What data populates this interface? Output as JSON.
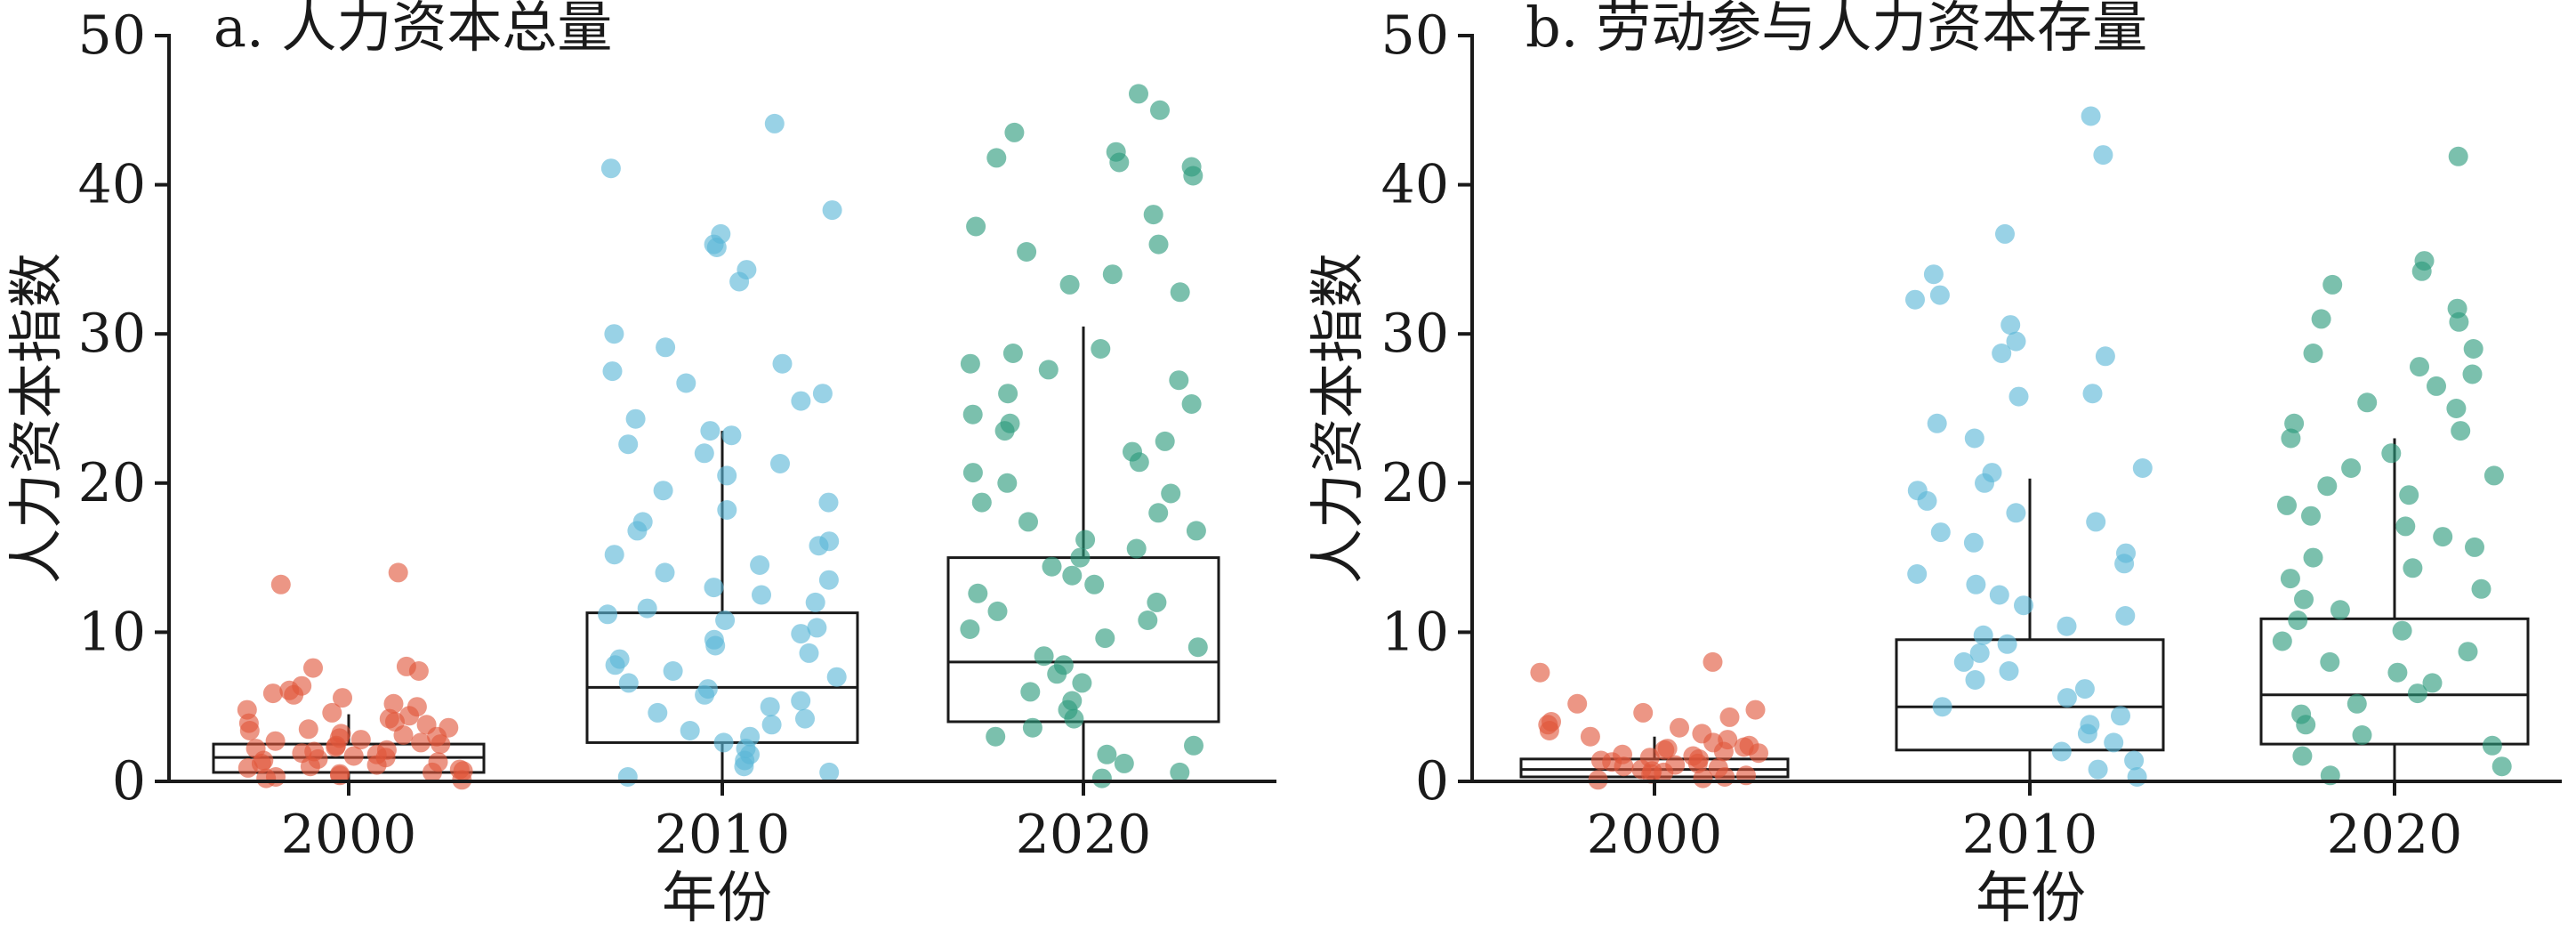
{
  "chart_data": [
    {
      "type": "scatter",
      "title": "a. 人力资本总量",
      "xlabel": "年份",
      "ylabel": "人力资本指数",
      "ylim": [
        0,
        50
      ],
      "yticks": [
        0,
        10,
        20,
        30,
        40,
        50
      ],
      "categories": [
        "2000",
        "2010",
        "2020"
      ],
      "colors": [
        "#e0553a",
        "#5bb7d6",
        "#2a9a7a"
      ],
      "boxes": [
        {
          "category": "2000",
          "q1": 0.6,
          "median": 1.6,
          "q3": 2.5,
          "whisker_low": 0,
          "whisker_high": 4.5
        },
        {
          "category": "2010",
          "q1": 2.6,
          "median": 6.3,
          "q3": 11.3,
          "whisker_low": 0,
          "whisker_high": 23.5
        },
        {
          "category": "2020",
          "q1": 4.0,
          "median": 8.0,
          "q3": 15.0,
          "whisker_low": 0,
          "whisker_high": 30.5
        }
      ],
      "series": [
        {
          "values": [
            14.0,
            13.2,
            7.7,
            7.6,
            7.4,
            6.4,
            6.1,
            5.9,
            5.8,
            5.6,
            5.2,
            5.0,
            4.8,
            4.6,
            4.4,
            4.2,
            4.0,
            3.9,
            3.8,
            3.6,
            3.5,
            3.4,
            3.2,
            3.1,
            3.0,
            2.9,
            2.8,
            2.7,
            2.6,
            2.5,
            2.4,
            2.3,
            2.2,
            2.1,
            2.0,
            1.9,
            1.8,
            1.7,
            1.6,
            1.5,
            1.4,
            1.3,
            1.2,
            1.1,
            1.0,
            0.9,
            0.8,
            0.7,
            0.6,
            0.5,
            0.4,
            0.3,
            0.2,
            0.1
          ]
        },
        {
          "values": [
            44.1,
            41.1,
            38.3,
            36.7,
            36.0,
            35.8,
            34.3,
            33.5,
            30.0,
            29.1,
            28.0,
            27.5,
            26.7,
            26.0,
            25.5,
            24.3,
            23.5,
            23.2,
            22.6,
            22.0,
            21.3,
            20.5,
            19.5,
            18.7,
            18.2,
            17.4,
            16.8,
            16.1,
            15.8,
            15.2,
            14.5,
            14.0,
            13.5,
            13.0,
            12.5,
            12.0,
            11.6,
            11.2,
            10.8,
            10.3,
            9.9,
            9.5,
            9.1,
            8.6,
            8.2,
            7.8,
            7.4,
            7.0,
            6.6,
            6.2,
            5.8,
            5.4,
            5.0,
            4.6,
            4.2,
            3.8,
            3.4,
            3.0,
            2.6,
            2.2,
            1.8,
            1.4,
            1.0,
            0.6,
            0.3
          ]
        },
        {
          "values": [
            46.1,
            45.0,
            43.5,
            42.2,
            41.8,
            41.5,
            41.2,
            40.6,
            38.0,
            37.2,
            36.0,
            35.5,
            34.0,
            33.3,
            32.8,
            29.0,
            28.7,
            28.0,
            27.6,
            26.9,
            26.0,
            25.3,
            24.6,
            24.0,
            23.5,
            22.8,
            22.1,
            21.4,
            20.7,
            20.0,
            19.3,
            18.7,
            18.0,
            17.4,
            16.8,
            16.2,
            15.6,
            15.0,
            14.4,
            13.8,
            13.2,
            12.6,
            12.0,
            11.4,
            10.8,
            10.2,
            9.6,
            9.0,
            8.4,
            7.8,
            7.2,
            6.6,
            6.0,
            5.4,
            4.8,
            4.2,
            3.6,
            3.0,
            2.4,
            1.8,
            1.2,
            0.6,
            0.2
          ]
        }
      ],
      "grid": false,
      "legend": "none"
    },
    {
      "type": "scatter",
      "title": "b. 劳动参与人力资本存量",
      "xlabel": "年份",
      "ylabel": "人力资本指数",
      "ylim": [
        0,
        50
      ],
      "yticks": [
        0,
        10,
        20,
        30,
        40,
        50
      ],
      "categories": [
        "2000",
        "2010",
        "2020"
      ],
      "colors": [
        "#e0553a",
        "#5bb7d6",
        "#2a9a7a"
      ],
      "boxes": [
        {
          "category": "2000",
          "q1": 0.3,
          "median": 0.8,
          "q3": 1.5,
          "whisker_low": 0,
          "whisker_high": 3.0
        },
        {
          "category": "2010",
          "q1": 2.1,
          "median": 5.0,
          "q3": 9.5,
          "whisker_low": 0,
          "whisker_high": 20.3
        },
        {
          "category": "2020",
          "q1": 2.5,
          "median": 5.8,
          "q3": 10.9,
          "whisker_low": 0,
          "whisker_high": 23.0
        }
      ],
      "series": [
        {
          "values": [
            8.0,
            7.3,
            5.2,
            4.8,
            4.6,
            4.3,
            4.0,
            3.8,
            3.6,
            3.4,
            3.2,
            3.0,
            2.8,
            2.6,
            2.4,
            2.3,
            2.2,
            2.1,
            2.0,
            1.9,
            1.8,
            1.7,
            1.6,
            1.5,
            1.4,
            1.3,
            1.2,
            1.1,
            1.0,
            0.9,
            0.8,
            0.7,
            0.6,
            0.5,
            0.4,
            0.3,
            0.2,
            0.1
          ]
        },
        {
          "values": [
            44.6,
            42.0,
            36.7,
            34.0,
            32.6,
            32.3,
            30.6,
            29.5,
            28.7,
            28.5,
            26.0,
            25.8,
            24.0,
            23.0,
            21.0,
            20.7,
            20.0,
            19.5,
            18.8,
            18.0,
            17.4,
            16.7,
            16.0,
            15.3,
            14.6,
            13.9,
            13.2,
            12.5,
            11.8,
            11.1,
            10.4,
            9.8,
            9.2,
            8.6,
            8.0,
            7.4,
            6.8,
            6.2,
            5.6,
            5.0,
            4.4,
            3.8,
            3.2,
            2.6,
            2.0,
            1.4,
            0.8,
            0.3
          ]
        },
        {
          "values": [
            41.9,
            34.9,
            34.2,
            33.3,
            31.7,
            31.0,
            30.8,
            29.0,
            28.7,
            27.8,
            27.3,
            26.5,
            25.4,
            25.0,
            24.0,
            23.5,
            23.0,
            22.0,
            21.0,
            20.5,
            19.8,
            19.2,
            18.5,
            17.8,
            17.1,
            16.4,
            15.7,
            15.0,
            14.3,
            13.6,
            12.9,
            12.2,
            11.5,
            10.8,
            10.1,
            9.4,
            8.7,
            8.0,
            7.3,
            6.6,
            5.9,
            5.2,
            4.5,
            3.8,
            3.1,
            2.4,
            1.7,
            1.0,
            0.4
          ]
        }
      ],
      "grid": false,
      "legend": "none"
    }
  ]
}
